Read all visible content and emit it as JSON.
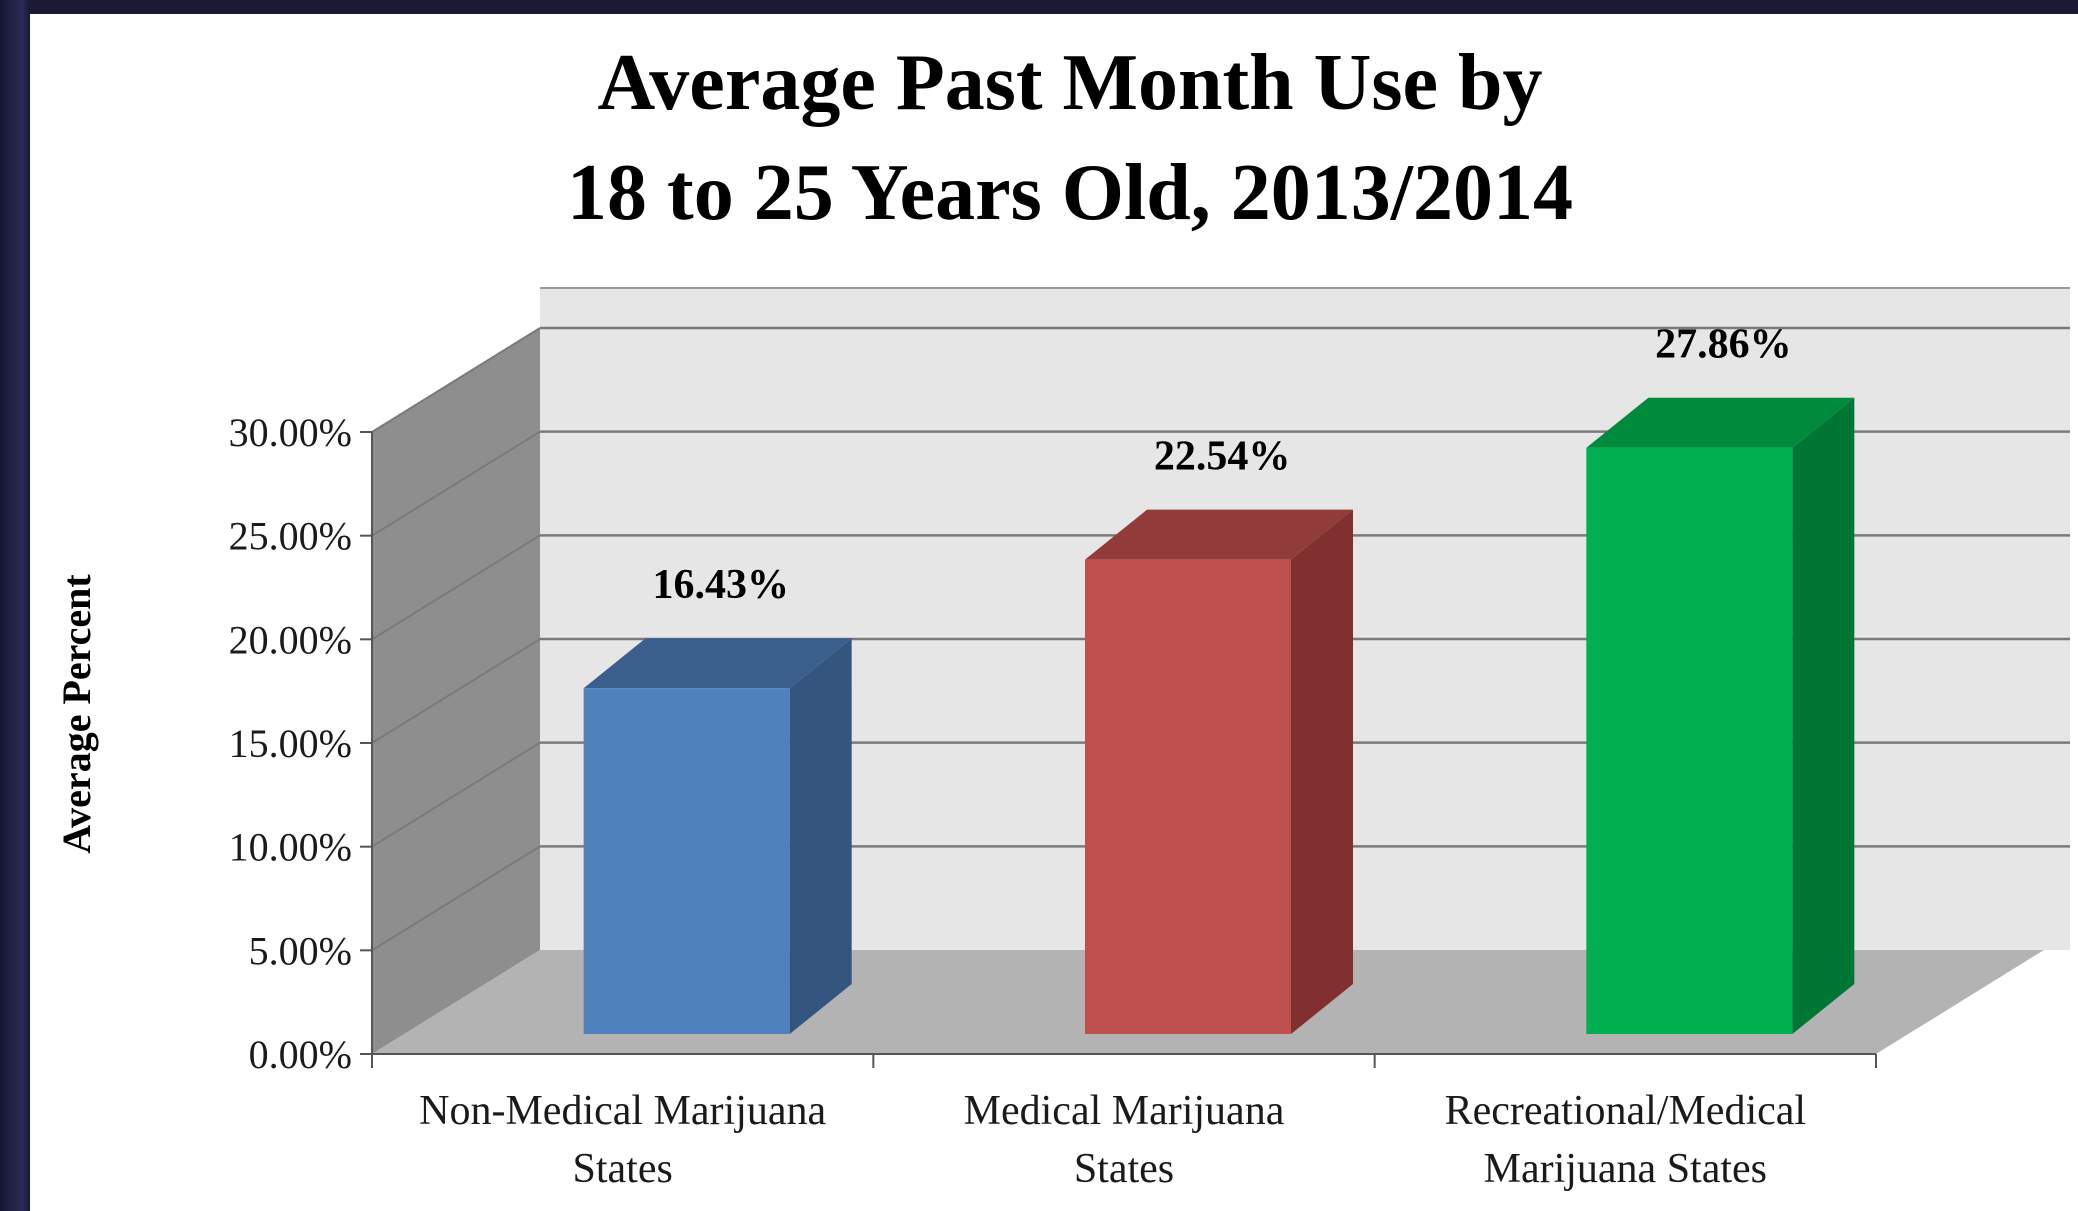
{
  "chart_data": {
    "type": "bar",
    "title": "Average Past Month Use by",
    "subtitle": "18 to 25 Years Old, 2013/2014",
    "ylabel": "Average Percent",
    "xlabel": "",
    "ylim": [
      0,
      30
    ],
    "yticks": [
      "0.00%",
      "5.00%",
      "10.00%",
      "15.00%",
      "20.00%",
      "25.00%",
      "30.00%"
    ],
    "categories": [
      [
        "Non-Medical Marijuana",
        "States"
      ],
      [
        "Medical Marijuana",
        "States"
      ],
      [
        "Recreational/Medical",
        "Marijuana States"
      ]
    ],
    "values": [
      16.43,
      22.54,
      27.86
    ],
    "value_labels": [
      "16.43%",
      "22.54%",
      "27.86%"
    ],
    "colors": {
      "front": [
        "#4f81bd",
        "#c0504d",
        "#00b050"
      ],
      "side": [
        "#34557e",
        "#7f302f",
        "#007634"
      ],
      "top": [
        "#3a5f8d",
        "#913c3a",
        "#008a3c"
      ],
      "back_wall": "#e6e6e6",
      "side_wall": "#8e8e8e",
      "floor": "#b3b3b3",
      "grid": "#7a7a7a"
    },
    "grid": true,
    "legend": "none",
    "projection": "3d"
  }
}
